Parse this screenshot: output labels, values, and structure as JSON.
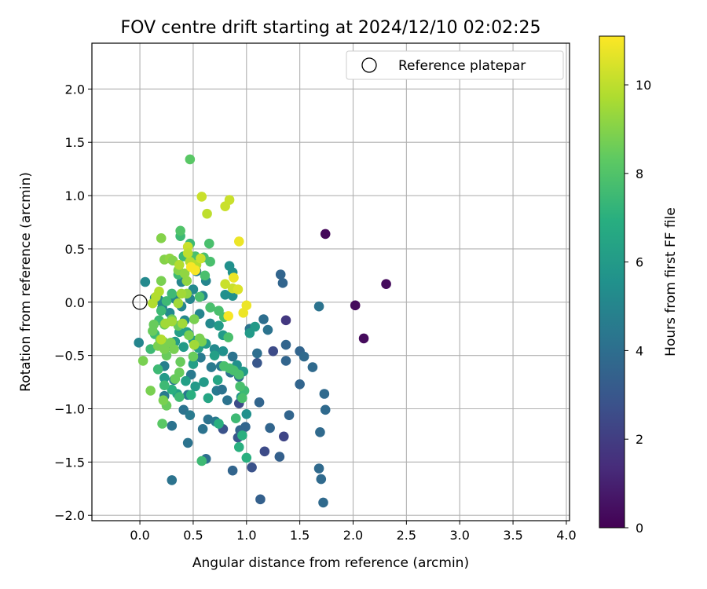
{
  "chart_data": {
    "type": "scatter",
    "title": "FOV centre drift starting at 2024/12/10 02:02:25",
    "xlabel": "Angular distance from reference (arcmin)",
    "ylabel": "Rotation from reference (arcmin)",
    "xlim": [
      -0.45,
      4.03
    ],
    "ylim": [
      -2.05,
      2.43
    ],
    "xticks": [
      "0.0",
      "0.5",
      "1.0",
      "1.5",
      "2.0",
      "2.5",
      "3.0",
      "3.5",
      "4.0"
    ],
    "yticks": [
      "−2.0",
      "−1.5",
      "−1.0",
      "−0.5",
      "0.0",
      "0.5",
      "1.0",
      "1.5",
      "2.0"
    ],
    "grid": true,
    "legend": {
      "position": "top-right",
      "entries": [
        {
          "label": "Reference platepar",
          "marker": "open-circle"
        }
      ]
    },
    "reference_point": {
      "x": 0.0,
      "y": 0.0
    },
    "colorbar": {
      "label": "Hours from first FF file",
      "ticks": [
        "0",
        "2",
        "4",
        "6",
        "8",
        "10"
      ],
      "range": [
        0,
        11.1
      ],
      "colormap": "viridis"
    },
    "points": [
      {
        "x": 1.74,
        "y": 0.64,
        "h": 0.2
      },
      {
        "x": 2.31,
        "y": 0.17,
        "h": 0.3
      },
      {
        "x": 2.02,
        "y": -0.03,
        "h": 0.3
      },
      {
        "x": 2.1,
        "y": -0.34,
        "h": 0.3
      },
      {
        "x": 1.37,
        "y": -0.17,
        "h": 1.8
      },
      {
        "x": 1.25,
        "y": -0.46,
        "h": 2.5
      },
      {
        "x": 1.35,
        "y": -1.26,
        "h": 2.3
      },
      {
        "x": 1.17,
        "y": -1.4,
        "h": 2.5
      },
      {
        "x": 1.05,
        "y": -1.55,
        "h": 2.8
      },
      {
        "x": 0.93,
        "y": -0.95,
        "h": 2.5
      },
      {
        "x": 0.78,
        "y": -1.19,
        "h": 2.8
      },
      {
        "x": 0.92,
        "y": -1.27,
        "h": 3.0
      },
      {
        "x": 1.13,
        "y": -1.85,
        "h": 3.4
      },
      {
        "x": 1.31,
        "y": -1.45,
        "h": 3.4
      },
      {
        "x": 1.1,
        "y": -0.57,
        "h": 3.0
      },
      {
        "x": 1.32,
        "y": 0.26,
        "h": 3.6
      },
      {
        "x": 1.34,
        "y": 0.18,
        "h": 3.6
      },
      {
        "x": 1.37,
        "y": -0.4,
        "h": 3.6
      },
      {
        "x": 1.37,
        "y": -0.55,
        "h": 3.6
      },
      {
        "x": 1.5,
        "y": -0.46,
        "h": 3.6
      },
      {
        "x": 1.5,
        "y": -0.77,
        "h": 3.6
      },
      {
        "x": 1.4,
        "y": -1.06,
        "h": 3.6
      },
      {
        "x": 1.22,
        "y": -1.18,
        "h": 3.6
      },
      {
        "x": 1.12,
        "y": -0.94,
        "h": 3.6
      },
      {
        "x": 0.99,
        "y": -1.17,
        "h": 3.6
      },
      {
        "x": 0.94,
        "y": -1.2,
        "h": 3.6
      },
      {
        "x": 0.87,
        "y": -1.58,
        "h": 3.6
      },
      {
        "x": 1.54,
        "y": -0.51,
        "h": 3.8
      },
      {
        "x": 1.62,
        "y": -0.61,
        "h": 3.8
      },
      {
        "x": 1.68,
        "y": -0.04,
        "h": 4.2
      },
      {
        "x": 1.73,
        "y": -0.86,
        "h": 3.8
      },
      {
        "x": 1.74,
        "y": -1.01,
        "h": 3.8
      },
      {
        "x": 1.69,
        "y": -1.22,
        "h": 3.8
      },
      {
        "x": 1.68,
        "y": -1.56,
        "h": 3.8
      },
      {
        "x": 1.7,
        "y": -1.66,
        "h": 3.8
      },
      {
        "x": 1.72,
        "y": -1.88,
        "h": 3.8
      },
      {
        "x": 1.1,
        "y": -0.48,
        "h": 4.0
      },
      {
        "x": 1.2,
        "y": -0.26,
        "h": 4.2
      },
      {
        "x": 1.16,
        "y": -0.16,
        "h": 4.0
      },
      {
        "x": 1.03,
        "y": -0.25,
        "h": 4.2
      },
      {
        "x": 0.93,
        "y": -0.7,
        "h": 4.0
      },
      {
        "x": 0.87,
        "y": -0.51,
        "h": 4.2
      },
      {
        "x": 0.85,
        "y": -0.66,
        "h": 4.2
      },
      {
        "x": 0.82,
        "y": -0.92,
        "h": 4.2
      },
      {
        "x": 0.62,
        "y": -1.47,
        "h": 4.0
      },
      {
        "x": 0.3,
        "y": -1.67,
        "h": 4.2
      },
      {
        "x": 0.3,
        "y": -1.16,
        "h": 4.2
      },
      {
        "x": 0.45,
        "y": -1.32,
        "h": 4.2
      },
      {
        "x": 0.41,
        "y": -1.01,
        "h": 4.2
      },
      {
        "x": 0.47,
        "y": -1.06,
        "h": 4.5
      },
      {
        "x": 0.64,
        "y": -1.1,
        "h": 4.2
      },
      {
        "x": 0.59,
        "y": -1.19,
        "h": 4.2
      },
      {
        "x": 0.71,
        "y": -1.12,
        "h": 4.5
      },
      {
        "x": 0.67,
        "y": -0.61,
        "h": 4.5
      },
      {
        "x": 0.72,
        "y": -0.83,
        "h": 4.5
      },
      {
        "x": 0.77,
        "y": -0.82,
        "h": 4.2
      },
      {
        "x": 0.76,
        "y": -0.6,
        "h": 4.5
      },
      {
        "x": 0.57,
        "y": -0.52,
        "h": 4.5
      },
      {
        "x": 0.48,
        "y": -0.68,
        "h": 4.5
      },
      {
        "x": 0.45,
        "y": -0.87,
        "h": 4.5
      },
      {
        "x": 0.32,
        "y": -0.73,
        "h": 4.5
      },
      {
        "x": 0.23,
        "y": -0.88,
        "h": 4.5
      },
      {
        "x": 0.23,
        "y": -0.6,
        "h": 4.8
      },
      {
        "x": -0.01,
        "y": -0.38,
        "h": 5.0
      },
      {
        "x": 0.05,
        "y": 0.19,
        "h": 5.2
      },
      {
        "x": 0.14,
        "y": 0.04,
        "h": 5.0
      },
      {
        "x": 0.18,
        "y": 0.02,
        "h": 5.2
      },
      {
        "x": 0.21,
        "y": -0.05,
        "h": 5.0
      },
      {
        "x": 0.28,
        "y": -0.1,
        "h": 5.2
      },
      {
        "x": 0.33,
        "y": 0.03,
        "h": 5.0
      },
      {
        "x": 0.39,
        "y": -0.04,
        "h": 5.0
      },
      {
        "x": 0.39,
        "y": 0.19,
        "h": 5.0
      },
      {
        "x": 0.42,
        "y": -0.17,
        "h": 5.2
      },
      {
        "x": 0.46,
        "y": -0.3,
        "h": 5.0
      },
      {
        "x": 0.47,
        "y": 0.03,
        "h": 5.0
      },
      {
        "x": 0.5,
        "y": 0.12,
        "h": 5.2
      },
      {
        "x": 0.53,
        "y": 0.29,
        "h": 4.6
      },
      {
        "x": 0.56,
        "y": -0.11,
        "h": 5.0
      },
      {
        "x": 0.59,
        "y": 0.06,
        "h": 5.0
      },
      {
        "x": 0.62,
        "y": 0.2,
        "h": 5.0
      },
      {
        "x": 0.66,
        "y": -0.2,
        "h": 5.2
      },
      {
        "x": 0.7,
        "y": -0.44,
        "h": 5.2
      },
      {
        "x": 0.78,
        "y": -0.46,
        "h": 5.5
      },
      {
        "x": 0.8,
        "y": 0.07,
        "h": 5.5
      },
      {
        "x": 0.84,
        "y": 0.34,
        "h": 5.5
      },
      {
        "x": 0.87,
        "y": 0.28,
        "h": 5.5
      },
      {
        "x": 0.87,
        "y": 0.06,
        "h": 5.5
      },
      {
        "x": 0.91,
        "y": -0.59,
        "h": 5.5
      },
      {
        "x": 0.95,
        "y": -0.89,
        "h": 5.5
      },
      {
        "x": 1.0,
        "y": -1.05,
        "h": 5.5
      },
      {
        "x": 1.03,
        "y": -0.29,
        "h": 6.0
      },
      {
        "x": 1.08,
        "y": -0.23,
        "h": 6.0
      },
      {
        "x": 0.97,
        "y": -0.65,
        "h": 6.0
      },
      {
        "x": 0.78,
        "y": -0.31,
        "h": 6.0
      },
      {
        "x": 0.74,
        "y": -0.22,
        "h": 6.0
      },
      {
        "x": 0.7,
        "y": -0.5,
        "h": 6.2
      },
      {
        "x": 0.62,
        "y": -0.39,
        "h": 6.0
      },
      {
        "x": 0.55,
        "y": -0.43,
        "h": 6.2
      },
      {
        "x": 0.5,
        "y": -0.36,
        "h": 6.0
      },
      {
        "x": 0.44,
        "y": -0.28,
        "h": 6.2
      },
      {
        "x": 0.41,
        "y": -0.42,
        "h": 6.0
      },
      {
        "x": 0.37,
        "y": -0.28,
        "h": 6.2
      },
      {
        "x": 0.33,
        "y": -0.37,
        "h": 6.0
      },
      {
        "x": 0.25,
        "y": -0.42,
        "h": 6.0
      },
      {
        "x": 0.23,
        "y": -0.71,
        "h": 6.0
      },
      {
        "x": 0.35,
        "y": -0.86,
        "h": 6.2
      },
      {
        "x": 0.43,
        "y": -0.74,
        "h": 6.2
      },
      {
        "x": 0.5,
        "y": -0.58,
        "h": 6.2
      },
      {
        "x": 0.52,
        "y": -0.79,
        "h": 6.0
      },
      {
        "x": 0.6,
        "y": -0.75,
        "h": 6.0
      },
      {
        "x": 0.64,
        "y": -0.9,
        "h": 6.5
      },
      {
        "x": 0.73,
        "y": -0.73,
        "h": 6.5
      },
      {
        "x": 0.74,
        "y": -1.14,
        "h": 7.0
      },
      {
        "x": 0.9,
        "y": -1.09,
        "h": 7.5
      },
      {
        "x": 0.98,
        "y": -0.83,
        "h": 7.5
      },
      {
        "x": 0.93,
        "y": -1.36,
        "h": 7.0
      },
      {
        "x": 0.96,
        "y": -1.25,
        "h": 7.0
      },
      {
        "x": 1.0,
        "y": -1.46,
        "h": 7.0
      },
      {
        "x": 0.58,
        "y": -1.49,
        "h": 7.5
      },
      {
        "x": 0.48,
        "y": -0.87,
        "h": 7.0
      },
      {
        "x": 0.37,
        "y": -0.89,
        "h": 7.5
      },
      {
        "x": 0.3,
        "y": -0.82,
        "h": 7.0
      },
      {
        "x": 0.23,
        "y": -0.78,
        "h": 7.5
      },
      {
        "x": 0.17,
        "y": -0.63,
        "h": 7.5
      },
      {
        "x": 0.1,
        "y": -0.44,
        "h": 7.5
      },
      {
        "x": 0.14,
        "y": -0.3,
        "h": 7.5
      },
      {
        "x": 0.18,
        "y": -0.17,
        "h": 7.5
      },
      {
        "x": 0.2,
        "y": -0.08,
        "h": 7.5
      },
      {
        "x": 0.25,
        "y": 0.01,
        "h": 7.5
      },
      {
        "x": 0.3,
        "y": 0.08,
        "h": 7.5
      },
      {
        "x": 0.36,
        "y": 0.26,
        "h": 7.5
      },
      {
        "x": 0.41,
        "y": 0.43,
        "h": 7.5
      },
      {
        "x": 0.38,
        "y": 0.62,
        "h": 7.5
      },
      {
        "x": 0.38,
        "y": 0.67,
        "h": 8.0
      },
      {
        "x": 0.47,
        "y": 0.55,
        "h": 7.5
      },
      {
        "x": 0.52,
        "y": 0.43,
        "h": 7.8
      },
      {
        "x": 0.6,
        "y": 0.42,
        "h": 7.8
      },
      {
        "x": 0.65,
        "y": 0.55,
        "h": 7.8
      },
      {
        "x": 0.66,
        "y": 0.38,
        "h": 7.8
      },
      {
        "x": 0.61,
        "y": 0.25,
        "h": 7.8
      },
      {
        "x": 0.56,
        "y": 0.05,
        "h": 7.8
      },
      {
        "x": 0.66,
        "y": -0.05,
        "h": 7.8
      },
      {
        "x": 0.74,
        "y": -0.08,
        "h": 7.8
      },
      {
        "x": 0.79,
        "y": -0.14,
        "h": 7.8
      },
      {
        "x": 0.83,
        "y": -0.33,
        "h": 7.8
      },
      {
        "x": 0.79,
        "y": -0.6,
        "h": 7.8
      },
      {
        "x": 0.84,
        "y": -0.62,
        "h": 7.8
      },
      {
        "x": 0.88,
        "y": -0.64,
        "h": 7.8
      },
      {
        "x": 0.93,
        "y": -0.68,
        "h": 7.8
      },
      {
        "x": 0.94,
        "y": -0.79,
        "h": 7.8
      },
      {
        "x": 0.96,
        "y": -0.9,
        "h": 7.8
      },
      {
        "x": 0.47,
        "y": 1.34,
        "h": 8.2
      },
      {
        "x": 0.21,
        "y": -1.14,
        "h": 8.2
      },
      {
        "x": 0.25,
        "y": -0.97,
        "h": 8.5
      },
      {
        "x": 0.25,
        "y": -0.5,
        "h": 8.5
      },
      {
        "x": 0.19,
        "y": -0.35,
        "h": 8.5
      },
      {
        "x": 0.12,
        "y": -0.27,
        "h": 8.5
      },
      {
        "x": 0.13,
        "y": -0.21,
        "h": 8.5
      },
      {
        "x": 0.23,
        "y": -0.21,
        "h": 8.5
      },
      {
        "x": 0.3,
        "y": -0.16,
        "h": 8.5
      },
      {
        "x": 0.36,
        "y": -0.22,
        "h": 8.5
      },
      {
        "x": 0.38,
        "y": -0.56,
        "h": 8.5
      },
      {
        "x": 0.5,
        "y": -0.51,
        "h": 8.5
      },
      {
        "x": 0.37,
        "y": -0.66,
        "h": 8.5
      },
      {
        "x": 0.33,
        "y": -0.72,
        "h": 8.5
      },
      {
        "x": 0.22,
        "y": -0.92,
        "h": 8.8
      },
      {
        "x": 0.1,
        "y": -0.83,
        "h": 8.8
      },
      {
        "x": 0.03,
        "y": -0.55,
        "h": 8.8
      },
      {
        "x": 0.17,
        "y": -0.41,
        "h": 8.8
      },
      {
        "x": 0.2,
        "y": -0.39,
        "h": 8.8
      },
      {
        "x": 0.22,
        "y": -0.37,
        "h": 8.8
      },
      {
        "x": 0.23,
        "y": -0.44,
        "h": 8.8
      },
      {
        "x": 0.29,
        "y": -0.38,
        "h": 8.8
      },
      {
        "x": 0.32,
        "y": -0.44,
        "h": 8.8
      },
      {
        "x": 0.46,
        "y": -0.31,
        "h": 8.8
      },
      {
        "x": 0.51,
        "y": -0.16,
        "h": 8.8
      },
      {
        "x": 0.56,
        "y": -0.34,
        "h": 8.8
      },
      {
        "x": 0.58,
        "y": -0.37,
        "h": 8.8
      },
      {
        "x": 0.2,
        "y": 0.2,
        "h": 8.8
      },
      {
        "x": 0.2,
        "y": 0.6,
        "h": 9.0
      },
      {
        "x": 0.23,
        "y": 0.4,
        "h": 9.0
      },
      {
        "x": 0.28,
        "y": 0.41,
        "h": 9.2
      },
      {
        "x": 0.31,
        "y": 0.39,
        "h": 9.0
      },
      {
        "x": 0.36,
        "y": 0.3,
        "h": 9.0
      },
      {
        "x": 0.42,
        "y": 0.27,
        "h": 9.2
      },
      {
        "x": 0.44,
        "y": 0.2,
        "h": 9.2
      },
      {
        "x": 0.44,
        "y": 0.08,
        "h": 9.2
      },
      {
        "x": 0.4,
        "y": -0.2,
        "h": 9.5
      },
      {
        "x": 0.51,
        "y": -0.4,
        "h": 9.5
      },
      {
        "x": 0.39,
        "y": 0.08,
        "h": 9.5
      },
      {
        "x": 0.36,
        "y": -0.01,
        "h": 9.5
      },
      {
        "x": 0.3,
        "y": -0.18,
        "h": 9.5
      },
      {
        "x": 0.24,
        "y": -0.2,
        "h": 9.5
      },
      {
        "x": 0.2,
        "y": -0.35,
        "h": 9.8
      },
      {
        "x": 0.12,
        "y": -0.01,
        "h": 9.8
      },
      {
        "x": 0.15,
        "y": 0.05,
        "h": 9.8
      },
      {
        "x": 0.18,
        "y": 0.1,
        "h": 9.8
      },
      {
        "x": 0.37,
        "y": 0.35,
        "h": 9.8
      },
      {
        "x": 0.47,
        "y": 0.38,
        "h": 9.8
      },
      {
        "x": 0.53,
        "y": 0.35,
        "h": 9.8
      },
      {
        "x": 0.57,
        "y": 0.41,
        "h": 10.2
      },
      {
        "x": 0.45,
        "y": 0.52,
        "h": 10.2
      },
      {
        "x": 0.45,
        "y": 0.46,
        "h": 10.0
      },
      {
        "x": 0.58,
        "y": 0.99,
        "h": 10.2
      },
      {
        "x": 0.63,
        "y": 0.83,
        "h": 10.0
      },
      {
        "x": 0.8,
        "y": 0.9,
        "h": 10.2
      },
      {
        "x": 0.84,
        "y": 0.96,
        "h": 10.2
      },
      {
        "x": 0.8,
        "y": 0.17,
        "h": 10.2
      },
      {
        "x": 0.87,
        "y": 0.13,
        "h": 10.2
      },
      {
        "x": 0.92,
        "y": 0.12,
        "h": 10.5
      },
      {
        "x": 0.93,
        "y": 0.57,
        "h": 10.8
      },
      {
        "x": 0.88,
        "y": 0.23,
        "h": 10.8
      },
      {
        "x": 0.97,
        "y": -0.1,
        "h": 10.8
      },
      {
        "x": 1.0,
        "y": -0.03,
        "h": 10.8
      },
      {
        "x": 0.83,
        "y": -0.13,
        "h": 11.0
      },
      {
        "x": 0.52,
        "y": 0.3,
        "h": 11.0
      },
      {
        "x": 0.48,
        "y": 0.33,
        "h": 11.0
      }
    ]
  }
}
